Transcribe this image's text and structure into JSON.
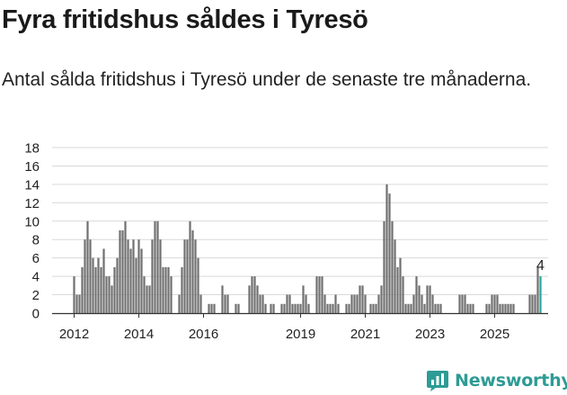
{
  "title": "Fyra fritidshus såldes i Tyresö",
  "subtitle": "Antal sålda fritidshus i Tyresö under de senaste tre månaderna.",
  "brand": {
    "name": "Newsworthy",
    "icon": "newsworthy-logo-icon"
  },
  "colors": {
    "bar": "#707070",
    "highlight": "#2aa39b",
    "grid": "#d9d9d9",
    "axis": "#333333",
    "brand": "#2e9b95"
  },
  "chart_data": {
    "type": "bar",
    "title": "Fyra fritidshus såldes i Tyresö",
    "xlabel": "",
    "ylabel": "",
    "ylim": [
      0,
      18
    ],
    "yticks": [
      0,
      2,
      4,
      6,
      8,
      10,
      12,
      14,
      16,
      18
    ],
    "xticks": [
      {
        "label": "2012",
        "date": "2012-01"
      },
      {
        "label": "2014",
        "date": "2014-01"
      },
      {
        "label": "2016",
        "date": "2016-01"
      },
      {
        "label": "2019",
        "date": "2019-01"
      },
      {
        "label": "2021",
        "date": "2021-01"
      },
      {
        "label": "2023",
        "date": "2023-01"
      },
      {
        "label": "2025",
        "date": "2025-01"
      }
    ],
    "start_month": "2012-01",
    "grid": true,
    "highlight_label": "4",
    "values": [
      4,
      2,
      2,
      5,
      8,
      10,
      8,
      6,
      5,
      6,
      5,
      7,
      4,
      4,
      3,
      5,
      6,
      9,
      9,
      10,
      8,
      7,
      8,
      6,
      8,
      7,
      4,
      3,
      3,
      8,
      10,
      10,
      8,
      5,
      5,
      5,
      4,
      0,
      0,
      2,
      5,
      8,
      8,
      10,
      9,
      8,
      6,
      2,
      0,
      0,
      1,
      1,
      1,
      0,
      0,
      3,
      2,
      2,
      0,
      0,
      1,
      1,
      0,
      0,
      0,
      3,
      4,
      4,
      3,
      2,
      2,
      1,
      0,
      1,
      1,
      0,
      0,
      1,
      1,
      2,
      2,
      1,
      1,
      1,
      1,
      3,
      2,
      1,
      0,
      0,
      4,
      4,
      4,
      2,
      1,
      1,
      1,
      2,
      1,
      0,
      0,
      1,
      1,
      2,
      2,
      2,
      3,
      3,
      2,
      0,
      1,
      1,
      1,
      2,
      3,
      10,
      14,
      13,
      10,
      8,
      5,
      6,
      4,
      1,
      1,
      1,
      2,
      4,
      3,
      2,
      1,
      3,
      3,
      2,
      1,
      1,
      1,
      0,
      0,
      0,
      0,
      0,
      0,
      2,
      2,
      2,
      1,
      1,
      1,
      0,
      0,
      0,
      0,
      1,
      1,
      2,
      2,
      2,
      1,
      1,
      1,
      1,
      1,
      1,
      0,
      0,
      0,
      0,
      0,
      2,
      2,
      2,
      5,
      4
    ]
  }
}
